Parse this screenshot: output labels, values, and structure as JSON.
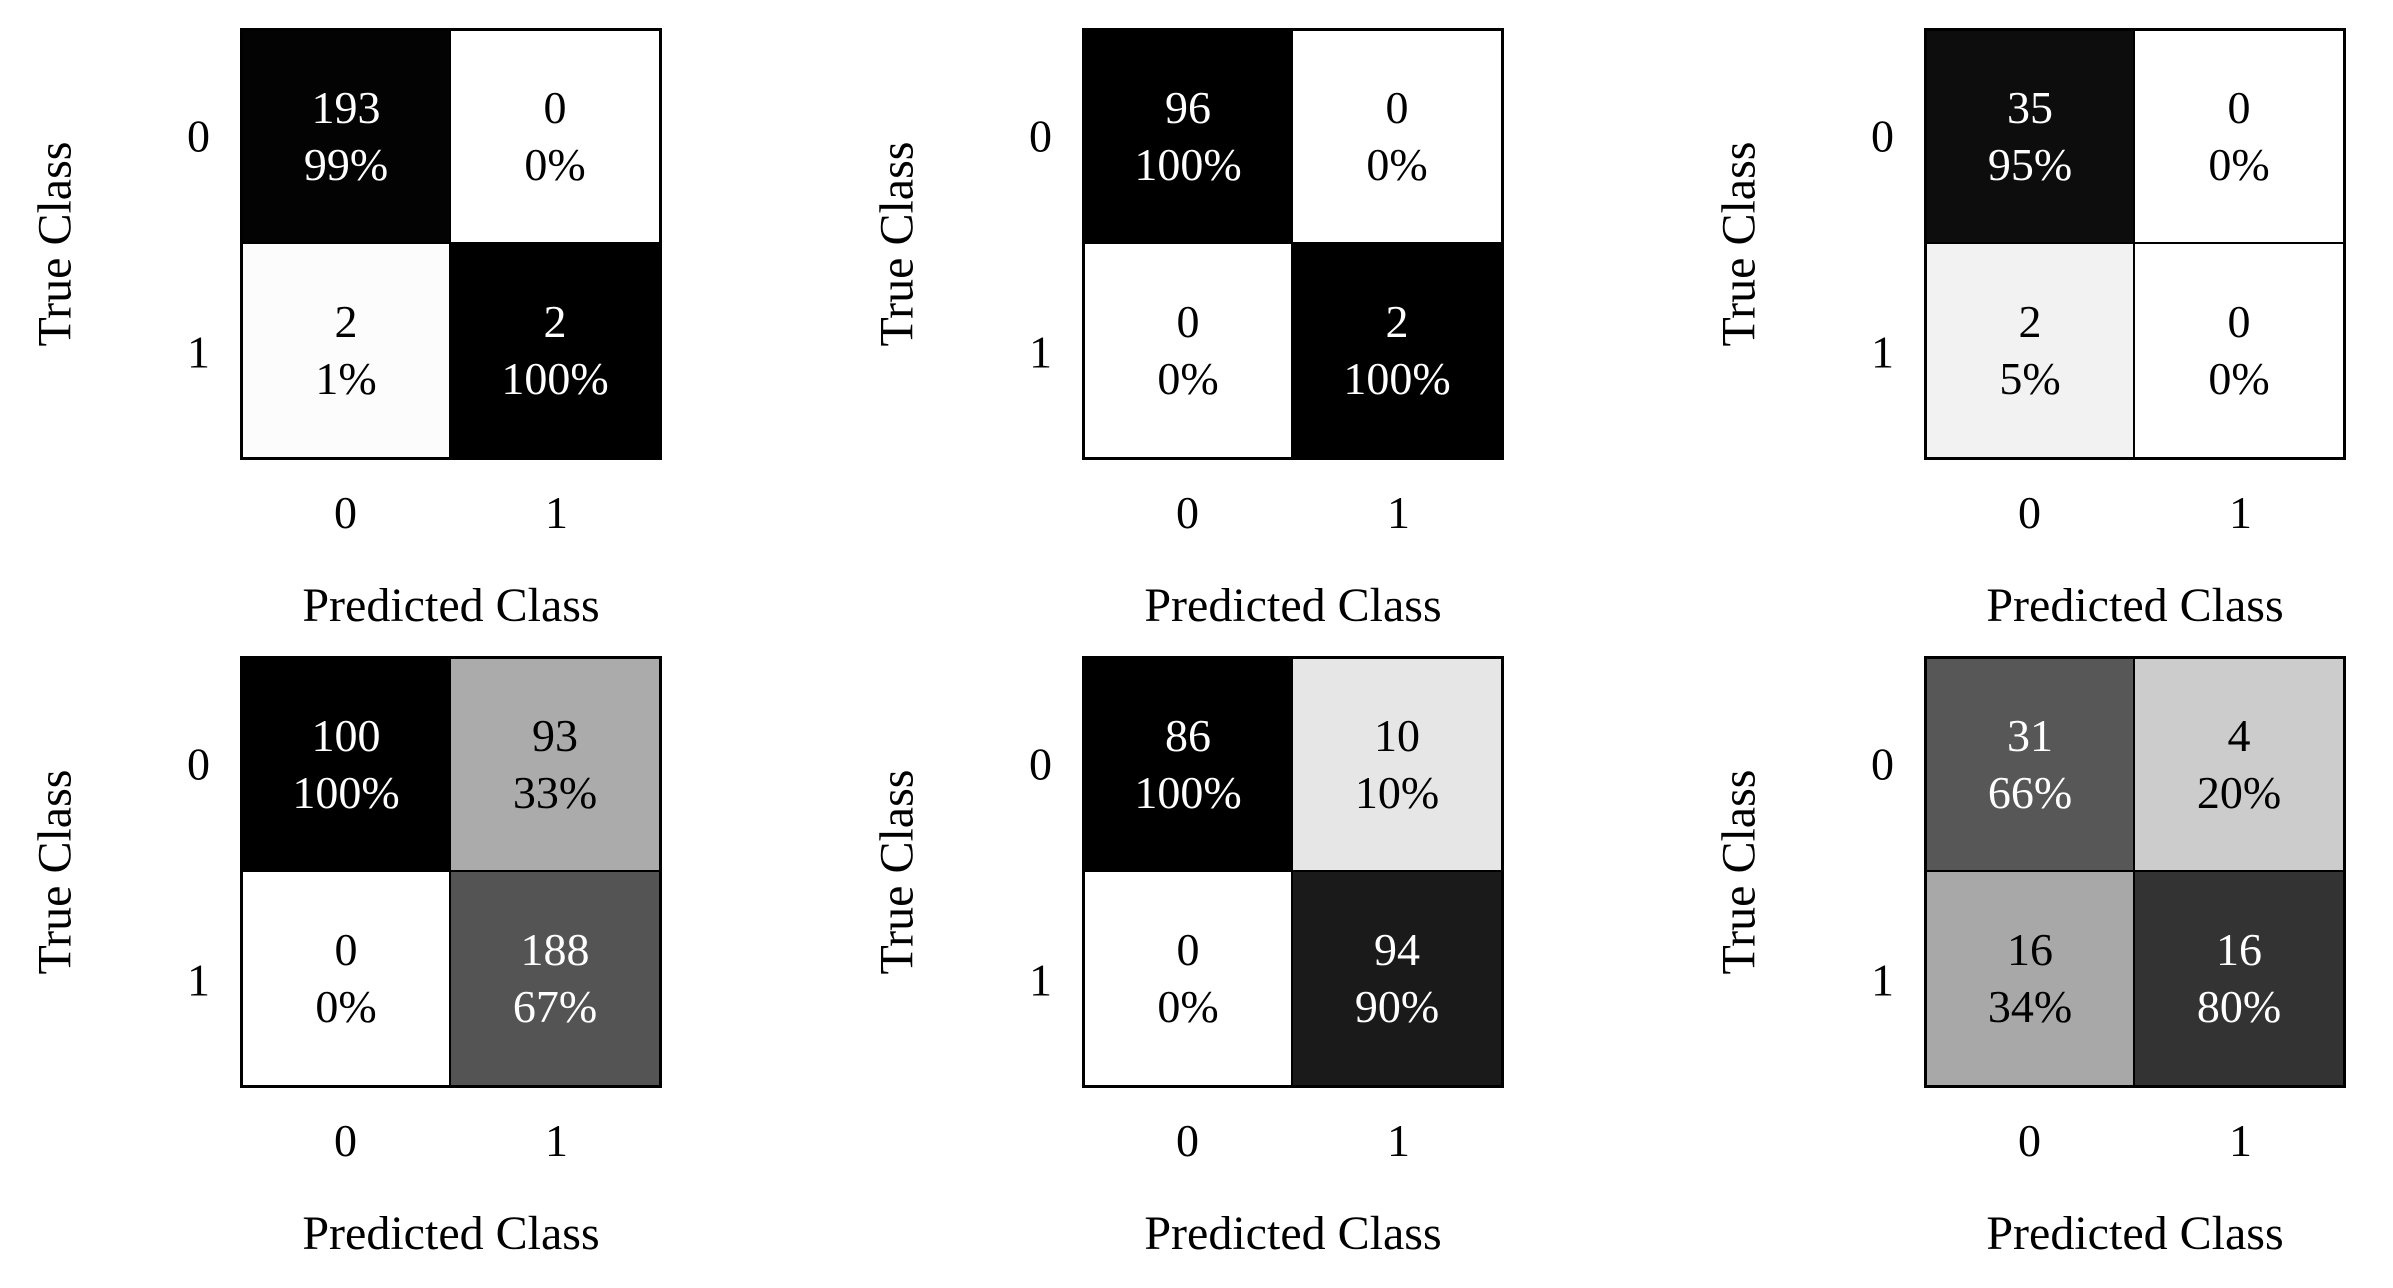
{
  "figure": {
    "xlabel": "Predicted Class",
    "ylabel": "True Class",
    "class_labels": [
      "0",
      "1"
    ],
    "colors": {
      "background": "#ffffff",
      "border": "#000000",
      "text_on_dark": "#ffffff",
      "text_on_light": "#000000"
    },
    "matrices": [
      {
        "position": "top-left",
        "cells": [
          [
            {
              "count": "193",
              "pct": "99%",
              "bg": "#030303",
              "fg": "#ffffff"
            },
            {
              "count": "0",
              "pct": "0%",
              "bg": "#ffffff",
              "fg": "#000000"
            }
          ],
          [
            {
              "count": "2",
              "pct": "1%",
              "bg": "#fcfcfc",
              "fg": "#000000"
            },
            {
              "count": "2",
              "pct": "100%",
              "bg": "#000000",
              "fg": "#ffffff"
            }
          ]
        ]
      },
      {
        "position": "top-middle",
        "cells": [
          [
            {
              "count": "96",
              "pct": "100%",
              "bg": "#000000",
              "fg": "#ffffff"
            },
            {
              "count": "0",
              "pct": "0%",
              "bg": "#ffffff",
              "fg": "#000000"
            }
          ],
          [
            {
              "count": "0",
              "pct": "0%",
              "bg": "#ffffff",
              "fg": "#000000"
            },
            {
              "count": "2",
              "pct": "100%",
              "bg": "#000000",
              "fg": "#ffffff"
            }
          ]
        ]
      },
      {
        "position": "top-right",
        "cells": [
          [
            {
              "count": "35",
              "pct": "95%",
              "bg": "#0d0d0d",
              "fg": "#ffffff"
            },
            {
              "count": "0",
              "pct": "0%",
              "bg": "#ffffff",
              "fg": "#000000"
            }
          ],
          [
            {
              "count": "2",
              "pct": "5%",
              "bg": "#f2f2f2",
              "fg": "#000000"
            },
            {
              "count": "0",
              "pct": "0%",
              "bg": "#ffffff",
              "fg": "#000000"
            }
          ]
        ]
      },
      {
        "position": "bottom-left",
        "cells": [
          [
            {
              "count": "100",
              "pct": "100%",
              "bg": "#000000",
              "fg": "#ffffff"
            },
            {
              "count": "93",
              "pct": "33%",
              "bg": "#ababab",
              "fg": "#000000"
            }
          ],
          [
            {
              "count": "0",
              "pct": "0%",
              "bg": "#ffffff",
              "fg": "#000000"
            },
            {
              "count": "188",
              "pct": "67%",
              "bg": "#545454",
              "fg": "#ffffff"
            }
          ]
        ]
      },
      {
        "position": "bottom-middle",
        "cells": [
          [
            {
              "count": "86",
              "pct": "100%",
              "bg": "#000000",
              "fg": "#ffffff"
            },
            {
              "count": "10",
              "pct": "10%",
              "bg": "#e6e6e6",
              "fg": "#000000"
            }
          ],
          [
            {
              "count": "0",
              "pct": "0%",
              "bg": "#ffffff",
              "fg": "#000000"
            },
            {
              "count": "94",
              "pct": "90%",
              "bg": "#1a1a1a",
              "fg": "#ffffff"
            }
          ]
        ]
      },
      {
        "position": "bottom-right",
        "cells": [
          [
            {
              "count": "31",
              "pct": "66%",
              "bg": "#575757",
              "fg": "#ffffff"
            },
            {
              "count": "4",
              "pct": "20%",
              "bg": "#cccccc",
              "fg": "#000000"
            }
          ],
          [
            {
              "count": "16",
              "pct": "34%",
              "bg": "#a8a8a8",
              "fg": "#000000"
            },
            {
              "count": "16",
              "pct": "80%",
              "bg": "#333333",
              "fg": "#ffffff"
            }
          ]
        ]
      }
    ]
  },
  "chart_data": [
    {
      "type": "heatmap",
      "position": "top-left",
      "title": "",
      "xlabel": "Predicted Class",
      "ylabel": "True Class",
      "x_categories": [
        "0",
        "1"
      ],
      "y_categories": [
        "0",
        "1"
      ],
      "counts": [
        [
          193,
          0
        ],
        [
          2,
          2
        ]
      ],
      "percents": [
        [
          99,
          0
        ],
        [
          1,
          100
        ]
      ],
      "colormap": "white-to-black by percent",
      "grid": false,
      "legend": false
    },
    {
      "type": "heatmap",
      "position": "top-middle",
      "title": "",
      "xlabel": "Predicted Class",
      "ylabel": "True Class",
      "x_categories": [
        "0",
        "1"
      ],
      "y_categories": [
        "0",
        "1"
      ],
      "counts": [
        [
          96,
          0
        ],
        [
          0,
          2
        ]
      ],
      "percents": [
        [
          100,
          0
        ],
        [
          0,
          100
        ]
      ],
      "colormap": "white-to-black by percent",
      "grid": false,
      "legend": false
    },
    {
      "type": "heatmap",
      "position": "top-right",
      "title": "",
      "xlabel": "Predicted Class",
      "ylabel": "True Class",
      "x_categories": [
        "0",
        "1"
      ],
      "y_categories": [
        "0",
        "1"
      ],
      "counts": [
        [
          35,
          0
        ],
        [
          2,
          0
        ]
      ],
      "percents": [
        [
          95,
          0
        ],
        [
          5,
          0
        ]
      ],
      "colormap": "white-to-black by percent",
      "grid": false,
      "legend": false
    },
    {
      "type": "heatmap",
      "position": "bottom-left",
      "title": "",
      "xlabel": "Predicted Class",
      "ylabel": "True Class",
      "x_categories": [
        "0",
        "1"
      ],
      "y_categories": [
        "0",
        "1"
      ],
      "counts": [
        [
          100,
          93
        ],
        [
          0,
          188
        ]
      ],
      "percents": [
        [
          100,
          33
        ],
        [
          0,
          67
        ]
      ],
      "colormap": "white-to-black by percent",
      "grid": false,
      "legend": false
    },
    {
      "type": "heatmap",
      "position": "bottom-middle",
      "title": "",
      "xlabel": "Predicted Class",
      "ylabel": "True Class",
      "x_categories": [
        "0",
        "1"
      ],
      "y_categories": [
        "0",
        "1"
      ],
      "counts": [
        [
          86,
          10
        ],
        [
          0,
          94
        ]
      ],
      "percents": [
        [
          100,
          10
        ],
        [
          0,
          90
        ]
      ],
      "colormap": "white-to-black by percent",
      "grid": false,
      "legend": false
    },
    {
      "type": "heatmap",
      "position": "bottom-right",
      "title": "",
      "xlabel": "Predicted Class",
      "ylabel": "True Class",
      "x_categories": [
        "0",
        "1"
      ],
      "y_categories": [
        "0",
        "1"
      ],
      "counts": [
        [
          31,
          4
        ],
        [
          16,
          16
        ]
      ],
      "percents": [
        [
          66,
          20
        ],
        [
          34,
          80
        ]
      ],
      "colormap": "white-to-black by percent",
      "grid": false,
      "legend": false
    }
  ]
}
